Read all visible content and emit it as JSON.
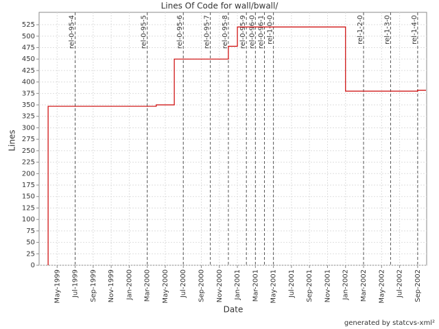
{
  "chart_data": {
    "type": "step-line",
    "title": "Lines Of Code for wall/bwall/",
    "x_label": "Date",
    "y_label": "Lines",
    "footer": "generated by statcvs-xml²",
    "series": [
      {
        "name": "Lines",
        "color": "#cc0000",
        "x": [
          "1999-04",
          "1999-04",
          "2000-04",
          "2000-06",
          "2000-12",
          "2001-01",
          "2002-01",
          "2002-09"
        ],
        "values": [
          0,
          347,
          350,
          450,
          478,
          520,
          380,
          382
        ]
      }
    ],
    "tags": [
      {
        "label": "rel-0-95-4",
        "x": "1999-07"
      },
      {
        "label": "rel-0-95-5",
        "x": "2000-03"
      },
      {
        "label": "rel-0-95-6",
        "x": "2000-07"
      },
      {
        "label": "rel-0-95-7",
        "x": "2000-10"
      },
      {
        "label": "rel-0-95-8",
        "x": "2000-12"
      },
      {
        "label": "rel-0-95-9",
        "x": "2001-02"
      },
      {
        "label": "rel-0-96-0",
        "x": "2001-03"
      },
      {
        "label": "rel-0-96-1",
        "x": "2001-04"
      },
      {
        "label": "rel-1-0-0",
        "x": "2001-05"
      },
      {
        "label": "rel-1-2-0",
        "x": "2002-03"
      },
      {
        "label": "rel-1-3-0",
        "x": "2002-06"
      },
      {
        "label": "rel-1-4-0",
        "x": "2002-09"
      }
    ],
    "xlim": [
      "1999-03",
      "2002-10"
    ],
    "xticks": [
      {
        "value": "1999-05",
        "label": "May-1999"
      },
      {
        "value": "1999-07",
        "label": "Jul-1999"
      },
      {
        "value": "1999-09",
        "label": "Sep-1999"
      },
      {
        "value": "1999-11",
        "label": "Nov-1999"
      },
      {
        "value": "2000-01",
        "label": "Jan-2000"
      },
      {
        "value": "2000-03",
        "label": "Mar-2000"
      },
      {
        "value": "2000-05",
        "label": "May-2000"
      },
      {
        "value": "2000-07",
        "label": "Jul-2000"
      },
      {
        "value": "2000-09",
        "label": "Sep-2000"
      },
      {
        "value": "2000-11",
        "label": "Nov-2000"
      },
      {
        "value": "2001-01",
        "label": "Jan-2001"
      },
      {
        "value": "2001-03",
        "label": "Mar-2001"
      },
      {
        "value": "2001-05",
        "label": "May-2001"
      },
      {
        "value": "2001-07",
        "label": "Jul-2001"
      },
      {
        "value": "2001-09",
        "label": "Sep-2001"
      },
      {
        "value": "2001-11",
        "label": "Nov-2001"
      },
      {
        "value": "2002-01",
        "label": "Jan-2002"
      },
      {
        "value": "2002-03",
        "label": "Mar-2002"
      },
      {
        "value": "2002-05",
        "label": "May-2002"
      },
      {
        "value": "2002-07",
        "label": "Jul-2002"
      },
      {
        "value": "2002-09",
        "label": "Sep-2002"
      }
    ],
    "ylim": [
      0,
      552
    ],
    "yticks": [
      0,
      25,
      50,
      75,
      100,
      125,
      150,
      175,
      200,
      225,
      250,
      275,
      300,
      325,
      350,
      375,
      400,
      425,
      450,
      475,
      500,
      525
    ],
    "grid": true
  }
}
